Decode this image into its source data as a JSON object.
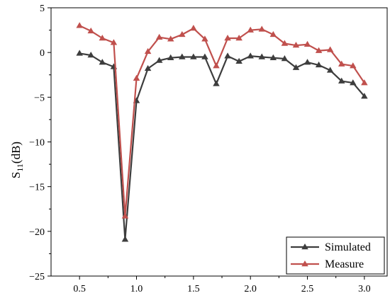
{
  "chart_data": {
    "type": "line",
    "title": "",
    "xlabel": "",
    "ylabel": "S",
    "ylabel_subscript": "11",
    "ylabel_unit": "(dB)",
    "xlim": [
      0.25,
      3.2
    ],
    "ylim": [
      -25,
      5
    ],
    "xticks": [
      0.5,
      1.0,
      1.5,
      2.0,
      2.5,
      3.0
    ],
    "xtick_labels": [
      "0.5",
      "1.0",
      "1.5",
      "2.0",
      "2.5",
      "3.0"
    ],
    "yticks": [
      5,
      0,
      -5,
      -10,
      -15,
      -20,
      -25
    ],
    "ytick_labels": [
      "5",
      "0",
      "−5",
      "−10",
      "−15",
      "−20",
      "−25"
    ],
    "grid": false,
    "legend_position": "bottom-right",
    "x": [
      0.5,
      0.6,
      0.7,
      0.8,
      0.9,
      1.0,
      1.1,
      1.2,
      1.3,
      1.4,
      1.5,
      1.6,
      1.7,
      1.8,
      1.9,
      2.0,
      2.1,
      2.2,
      2.3,
      2.4,
      2.5,
      2.6,
      2.7,
      2.8,
      2.9,
      3.0
    ],
    "series": [
      {
        "name": "Simulated",
        "color": "#3d3d3d",
        "values": [
          -0.1,
          -0.3,
          -1.1,
          -1.6,
          -20.9,
          -5.4,
          -1.8,
          -0.9,
          -0.6,
          -0.5,
          -0.5,
          -0.5,
          -3.5,
          -0.4,
          -1.0,
          -0.4,
          -0.5,
          -0.6,
          -0.7,
          -1.7,
          -1.1,
          -1.4,
          -2.0,
          -3.2,
          -3.4,
          -4.9
        ]
      },
      {
        "name": "Measure",
        "color": "#c0504d",
        "values": [
          3.0,
          2.4,
          1.6,
          1.1,
          -18.3,
          -2.9,
          0.1,
          1.7,
          1.5,
          2.0,
          2.7,
          1.5,
          -1.5,
          1.6,
          1.6,
          2.5,
          2.6,
          2.0,
          1.0,
          0.8,
          0.9,
          0.2,
          0.3,
          -1.3,
          -1.5,
          -3.4
        ]
      }
    ]
  }
}
